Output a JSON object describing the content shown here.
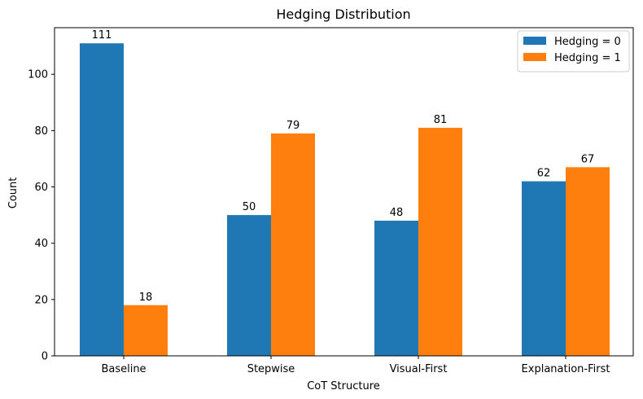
{
  "chart_data": {
    "type": "bar",
    "title": "Hedging Distribution",
    "xlabel": "CoT Structure",
    "ylabel": "Count",
    "categories": [
      "Baseline",
      "Stepwise",
      "Visual-First",
      "Explanation-First"
    ],
    "series": [
      {
        "name": "Hedging = 0",
        "values": [
          111,
          50,
          48,
          62
        ],
        "color": "#1f77b4"
      },
      {
        "name": "Hedging = 1",
        "values": [
          18,
          79,
          81,
          67
        ],
        "color": "#ff7f0e"
      }
    ],
    "ylim": [
      0,
      116.55
    ],
    "yticks": [
      0,
      20,
      40,
      60,
      80,
      100
    ],
    "data_labels": true,
    "grid": false,
    "legend_position": "top-right"
  }
}
